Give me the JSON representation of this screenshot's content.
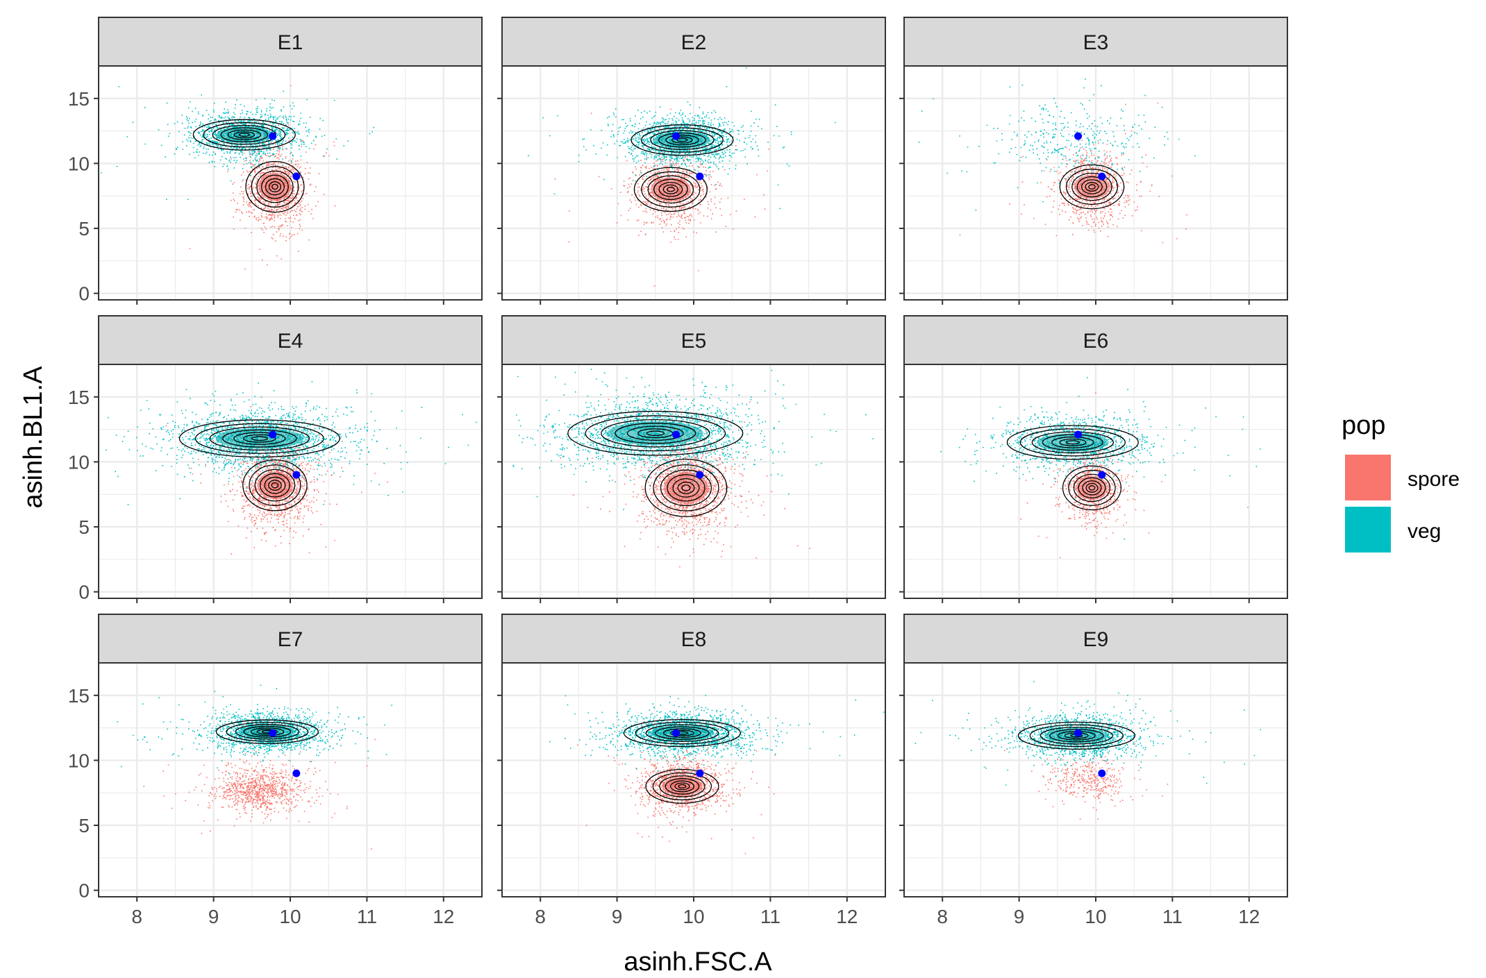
{
  "chart_data": {
    "type": "scatter",
    "facet_layout": "3x3",
    "xlabel": "asinh.FSC.A",
    "ylabel": "asinh.BL1.A",
    "xlim": [
      7.5,
      12.5
    ],
    "ylim": [
      -0.5,
      17.5
    ],
    "x_ticks": [
      8,
      9,
      10,
      11,
      12
    ],
    "y_ticks": [
      0,
      5,
      10,
      15
    ],
    "grid": true,
    "legend": {
      "title": "pop",
      "placement": "right",
      "entries": [
        {
          "label": "spore",
          "color": "#f8766d"
        },
        {
          "label": "veg",
          "color": "#00bfc4"
        }
      ]
    },
    "reference_points": [
      {
        "x": 9.77,
        "y": 12.1
      },
      {
        "x": 10.08,
        "y": 9.0
      }
    ],
    "reference_color": "#0000ff",
    "facets": [
      {
        "label": "E1",
        "veg": {
          "cx": 9.4,
          "cy": 12.2,
          "sx": 0.35,
          "sy": 0.9,
          "count": 1400,
          "contour": true
        },
        "spore": {
          "cx": 9.8,
          "cy": 8.2,
          "sx": 0.2,
          "sy": 1.5,
          "count": 1100,
          "contour": true
        }
      },
      {
        "label": "E2",
        "veg": {
          "cx": 9.85,
          "cy": 11.8,
          "sx": 0.35,
          "sy": 0.9,
          "count": 1700,
          "contour": true
        },
        "spore": {
          "cx": 9.7,
          "cy": 8.0,
          "sx": 0.25,
          "sy": 1.3,
          "count": 900,
          "contour": true
        }
      },
      {
        "label": "E3",
        "veg": {
          "cx": 9.7,
          "cy": 11.8,
          "sx": 0.45,
          "sy": 1.5,
          "count": 350,
          "contour": false
        },
        "spore": {
          "cx": 9.95,
          "cy": 8.2,
          "sx": 0.22,
          "sy": 1.3,
          "count": 800,
          "contour": true
        }
      },
      {
        "label": "E4",
        "veg": {
          "cx": 9.6,
          "cy": 11.8,
          "sx": 0.55,
          "sy": 1.1,
          "count": 2000,
          "contour": true
        },
        "spore": {
          "cx": 9.8,
          "cy": 8.2,
          "sx": 0.22,
          "sy": 1.5,
          "count": 1200,
          "contour": true
        }
      },
      {
        "label": "E5",
        "veg": {
          "cx": 9.5,
          "cy": 12.2,
          "sx": 0.6,
          "sy": 1.3,
          "count": 2000,
          "contour": true
        },
        "spore": {
          "cx": 9.9,
          "cy": 8.0,
          "sx": 0.28,
          "sy": 1.7,
          "count": 1400,
          "contour": true
        }
      },
      {
        "label": "E6",
        "veg": {
          "cx": 9.7,
          "cy": 11.5,
          "sx": 0.45,
          "sy": 1.0,
          "count": 1200,
          "contour": true
        },
        "spore": {
          "cx": 9.95,
          "cy": 8.0,
          "sx": 0.2,
          "sy": 1.3,
          "count": 700,
          "contour": true
        }
      },
      {
        "label": "E7",
        "veg": {
          "cx": 9.7,
          "cy": 12.2,
          "sx": 0.35,
          "sy": 0.7,
          "count": 1700,
          "contour": true
        },
        "spore": {
          "cx": 9.6,
          "cy": 7.8,
          "sx": 0.3,
          "sy": 0.9,
          "count": 900,
          "contour": false
        }
      },
      {
        "label": "E8",
        "veg": {
          "cx": 9.85,
          "cy": 12.1,
          "sx": 0.4,
          "sy": 0.8,
          "count": 1800,
          "contour": true
        },
        "spore": {
          "cx": 9.85,
          "cy": 8.0,
          "sx": 0.25,
          "sy": 1.0,
          "count": 1200,
          "contour": true
        }
      },
      {
        "label": "E9",
        "veg": {
          "cx": 9.75,
          "cy": 11.9,
          "sx": 0.4,
          "sy": 0.8,
          "count": 1500,
          "contour": true
        },
        "spore": {
          "cx": 9.9,
          "cy": 8.5,
          "sx": 0.25,
          "sy": 0.8,
          "count": 350,
          "contour": false
        }
      }
    ]
  }
}
